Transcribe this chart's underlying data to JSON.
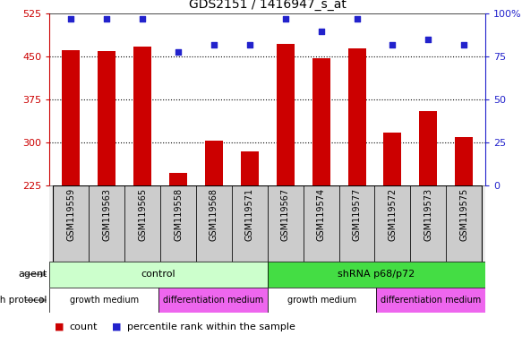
{
  "title": "GDS2151 / 1416947_s_at",
  "samples": [
    "GSM119559",
    "GSM119563",
    "GSM119565",
    "GSM119558",
    "GSM119568",
    "GSM119571",
    "GSM119567",
    "GSM119574",
    "GSM119577",
    "GSM119572",
    "GSM119573",
    "GSM119575"
  ],
  "counts": [
    462,
    460,
    468,
    247,
    303,
    285,
    472,
    447,
    465,
    318,
    355,
    310
  ],
  "percentiles": [
    97,
    97,
    97,
    78,
    82,
    82,
    97,
    90,
    97,
    82,
    85,
    82
  ],
  "ylim_left": [
    225,
    525
  ],
  "ylim_right": [
    0,
    100
  ],
  "yticks_left": [
    225,
    300,
    375,
    450,
    525
  ],
  "yticks_right": [
    0,
    25,
    50,
    75,
    100
  ],
  "ytick_labels_right": [
    "0",
    "25",
    "50",
    "75",
    "100%"
  ],
  "bar_color": "#cc0000",
  "dot_color": "#2222cc",
  "agent_groups": [
    {
      "label": "control",
      "start": 0,
      "end": 6,
      "color": "#ccffcc"
    },
    {
      "label": "shRNA p68/p72",
      "start": 6,
      "end": 12,
      "color": "#44dd44"
    }
  ],
  "growth_groups": [
    {
      "label": "growth medium",
      "start": 0,
      "end": 3,
      "color": "#ffffff"
    },
    {
      "label": "differentiation medium",
      "start": 3,
      "end": 6,
      "color": "#ee66ee"
    },
    {
      "label": "growth medium",
      "start": 6,
      "end": 9,
      "color": "#ffffff"
    },
    {
      "label": "differentiation medium",
      "start": 9,
      "end": 12,
      "color": "#ee66ee"
    }
  ],
  "bar_color_legend": "#cc0000",
  "dot_color_legend": "#2222cc",
  "tick_color_left": "#cc0000",
  "tick_color_right": "#2222cc",
  "bar_width": 0.5,
  "grid_lines_at": [
    300,
    375,
    450
  ],
  "sample_bg_color": "#cccccc",
  "n_samples": 12
}
